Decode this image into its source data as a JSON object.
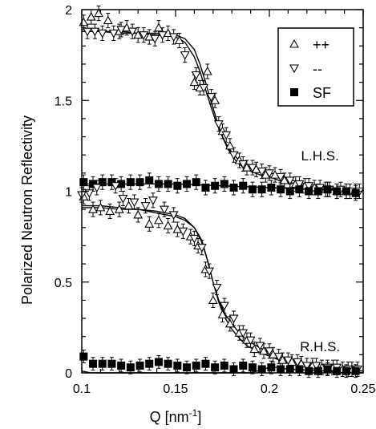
{
  "chart_data": {
    "type": "scatter",
    "title": "",
    "xlabel": "Q [nm",
    "xlabel_sup": "-1",
    "xlabel_suffix": "]",
    "ylabel": "Polarized Neutron Reflectivity",
    "xlim": [
      0.1,
      0.25
    ],
    "ylim": [
      0,
      2
    ],
    "x_ticks": [
      0.1,
      0.15,
      0.2,
      0.25
    ],
    "x_tick_labels": [
      "0.1",
      "0.15",
      "0.2",
      "0.25"
    ],
    "y_ticks": [
      0,
      0.5,
      1,
      1.5,
      2
    ],
    "y_tick_labels": [
      "0",
      "0.5",
      "1",
      "1.5",
      "2"
    ],
    "grid": false,
    "legend_position": "top-right",
    "legend": [
      {
        "key": "pp",
        "label": "++"
      },
      {
        "key": "mm",
        "label": "--"
      },
      {
        "key": "sf",
        "label": "SF"
      }
    ],
    "annotations": [
      {
        "text": "L.H.S.",
        "x": 0.227,
        "y": 1.17
      },
      {
        "text": "R.H.S.",
        "x": 0.227,
        "y": 0.12
      }
    ],
    "colors": {
      "markers": "#000000",
      "lines": "#000000"
    },
    "series": [
      {
        "key": "pp",
        "group": "L.H.S.",
        "marker": "triangle-up",
        "x": [
          0.101,
          0.105,
          0.109,
          0.114,
          0.12,
          0.124,
          0.13,
          0.136,
          0.141,
          0.146,
          0.152,
          0.16,
          0.163,
          0.167,
          0.171,
          0.175,
          0.179,
          0.184,
          0.188,
          0.193,
          0.198,
          0.203,
          0.208,
          0.214,
          0.219,
          0.224,
          0.23,
          0.236,
          0.241,
          0.246
        ],
        "y": [
          1.93,
          1.96,
          1.98,
          1.94,
          1.88,
          1.9,
          1.86,
          1.85,
          1.9,
          1.87,
          1.83,
          1.6,
          1.57,
          1.66,
          1.5,
          1.33,
          1.25,
          1.17,
          1.13,
          1.12,
          1.09,
          1.09,
          1.06,
          1.04,
          1.03,
          1.02,
          1.01,
          1.0,
          1.0,
          1.0
        ],
        "yerr": 0.04
      },
      {
        "key": "mm",
        "group": "L.H.S.",
        "marker": "triangle-down",
        "x": [
          0.103,
          0.107,
          0.111,
          0.117,
          0.121,
          0.127,
          0.133,
          0.139,
          0.143,
          0.149,
          0.155,
          0.161,
          0.165,
          0.169,
          0.173,
          0.177,
          0.181,
          0.186,
          0.191,
          0.196,
          0.2,
          0.206,
          0.211,
          0.216,
          0.221,
          0.227,
          0.232,
          0.238,
          0.243,
          0.248
        ],
        "y": [
          1.88,
          1.88,
          1.87,
          1.87,
          1.89,
          1.88,
          1.86,
          1.84,
          1.86,
          1.85,
          1.75,
          1.64,
          1.57,
          1.52,
          1.37,
          1.31,
          1.2,
          1.15,
          1.13,
          1.11,
          1.1,
          1.08,
          1.06,
          1.04,
          1.03,
          1.02,
          1.01,
          1.01,
          1.0,
          1.0
        ],
        "yerr": 0.04
      },
      {
        "key": "sf",
        "group": "L.H.S.",
        "marker": "square",
        "x": [
          0.101,
          0.106,
          0.111,
          0.116,
          0.121,
          0.126,
          0.131,
          0.136,
          0.141,
          0.146,
          0.151,
          0.156,
          0.161,
          0.166,
          0.171,
          0.176,
          0.181,
          0.186,
          0.191,
          0.196,
          0.201,
          0.206,
          0.211,
          0.216,
          0.221,
          0.226,
          0.231,
          0.236,
          0.241,
          0.246
        ],
        "y": [
          1.05,
          1.04,
          1.05,
          1.05,
          1.04,
          1.05,
          1.05,
          1.06,
          1.04,
          1.04,
          1.03,
          1.04,
          1.05,
          1.02,
          1.03,
          1.04,
          1.02,
          1.03,
          1.01,
          1.01,
          1.02,
          1.01,
          1.0,
          1.01,
          1.0,
          1.0,
          1.01,
          1.0,
          1.0,
          0.99
        ],
        "yerr": 0.04
      },
      {
        "key": "pp",
        "group": "R.H.S.",
        "marker": "triangle-up",
        "x": [
          0.101,
          0.106,
          0.11,
          0.115,
          0.12,
          0.125,
          0.13,
          0.136,
          0.141,
          0.146,
          0.151,
          0.158,
          0.162,
          0.166,
          0.17,
          0.175,
          0.179,
          0.184,
          0.188,
          0.192,
          0.197,
          0.202,
          0.207,
          0.212,
          0.217,
          0.223,
          0.228,
          0.234,
          0.239,
          0.244
        ],
        "y": [
          0.97,
          0.9,
          0.91,
          0.89,
          0.9,
          0.92,
          0.87,
          0.82,
          0.84,
          0.81,
          0.79,
          0.75,
          0.7,
          0.57,
          0.4,
          0.32,
          0.27,
          0.22,
          0.18,
          0.13,
          0.12,
          0.1,
          0.07,
          0.06,
          0.05,
          0.04,
          0.03,
          0.03,
          0.02,
          0.02
        ],
        "yerr": 0.04
      },
      {
        "key": "mm",
        "group": "R.H.S.",
        "marker": "triangle-down",
        "x": [
          0.1,
          0.104,
          0.108,
          0.118,
          0.122,
          0.128,
          0.134,
          0.138,
          0.144,
          0.149,
          0.154,
          0.16,
          0.164,
          0.168,
          0.172,
          0.176,
          0.181,
          0.186,
          0.19,
          0.195,
          0.2,
          0.205,
          0.21,
          0.215,
          0.22,
          0.225,
          0.231,
          0.236,
          0.242,
          0.247
        ],
        "y": [
          0.98,
          0.99,
          1.02,
          1.03,
          0.96,
          0.94,
          0.92,
          0.95,
          0.9,
          0.87,
          0.78,
          0.74,
          0.69,
          0.56,
          0.47,
          0.37,
          0.3,
          0.22,
          0.18,
          0.15,
          0.12,
          0.09,
          0.07,
          0.06,
          0.04,
          0.04,
          0.03,
          0.03,
          0.02,
          0.02
        ],
        "yerr": 0.04
      },
      {
        "key": "sf",
        "group": "R.H.S.",
        "marker": "square",
        "x": [
          0.101,
          0.106,
          0.111,
          0.116,
          0.121,
          0.126,
          0.131,
          0.136,
          0.141,
          0.146,
          0.151,
          0.156,
          0.161,
          0.166,
          0.171,
          0.176,
          0.181,
          0.186,
          0.191,
          0.196,
          0.201,
          0.206,
          0.211,
          0.216,
          0.221,
          0.226,
          0.231,
          0.236,
          0.241,
          0.246
        ],
        "y": [
          0.09,
          0.05,
          0.05,
          0.05,
          0.04,
          0.03,
          0.04,
          0.05,
          0.06,
          0.05,
          0.04,
          0.03,
          0.04,
          0.05,
          0.03,
          0.04,
          0.02,
          0.04,
          0.03,
          0.02,
          0.03,
          0.02,
          0.02,
          0.02,
          0.01,
          0.01,
          0.02,
          0.01,
          0.01,
          0.01
        ],
        "yerr": 0.035
      }
    ],
    "fit_lines": [
      {
        "group": "L.H.S.",
        "key": "pp",
        "x": [
          0.1,
          0.11,
          0.12,
          0.13,
          0.14,
          0.15,
          0.155,
          0.16,
          0.163,
          0.166,
          0.169,
          0.172,
          0.175,
          0.178,
          0.182,
          0.186,
          0.19,
          0.195,
          0.2,
          0.205,
          0.21,
          0.215,
          0.22,
          0.225,
          0.23,
          0.235,
          0.24,
          0.245,
          0.25
        ],
        "y": [
          1.88,
          1.88,
          1.87,
          1.87,
          1.86,
          1.85,
          1.82,
          1.74,
          1.66,
          1.56,
          1.46,
          1.37,
          1.3,
          1.24,
          1.19,
          1.15,
          1.13,
          1.11,
          1.1,
          1.09,
          1.07,
          1.05,
          1.04,
          1.03,
          1.02,
          1.01,
          1.01,
          1.0,
          1.0
        ]
      },
      {
        "group": "L.H.S.",
        "key": "mm",
        "x": [
          0.1,
          0.11,
          0.12,
          0.13,
          0.14,
          0.15,
          0.155,
          0.16,
          0.163,
          0.166,
          0.169,
          0.172,
          0.175,
          0.178,
          0.182,
          0.186,
          0.19,
          0.195,
          0.2,
          0.205,
          0.21,
          0.215,
          0.22,
          0.225,
          0.23,
          0.235,
          0.24,
          0.245,
          0.25
        ],
        "y": [
          1.88,
          1.88,
          1.88,
          1.87,
          1.87,
          1.86,
          1.84,
          1.78,
          1.7,
          1.6,
          1.49,
          1.39,
          1.3,
          1.23,
          1.17,
          1.13,
          1.11,
          1.09,
          1.08,
          1.06,
          1.05,
          1.04,
          1.03,
          1.02,
          1.01,
          1.01,
          1.0,
          1.0,
          1.0
        ]
      },
      {
        "group": "L.H.S.",
        "key": "sf",
        "x": [
          0.1,
          0.15,
          0.2,
          0.25
        ],
        "y": [
          1.04,
          1.04,
          1.02,
          1.0
        ]
      },
      {
        "group": "R.H.S.",
        "key": "pp",
        "x": [
          0.1,
          0.11,
          0.12,
          0.13,
          0.14,
          0.15,
          0.155,
          0.16,
          0.164,
          0.167,
          0.17,
          0.173,
          0.176,
          0.18,
          0.184,
          0.188,
          0.193,
          0.198,
          0.203,
          0.208,
          0.213,
          0.218,
          0.223,
          0.228,
          0.235,
          0.242,
          0.25
        ],
        "y": [
          0.91,
          0.91,
          0.9,
          0.9,
          0.88,
          0.86,
          0.84,
          0.8,
          0.72,
          0.62,
          0.5,
          0.4,
          0.33,
          0.27,
          0.22,
          0.18,
          0.15,
          0.12,
          0.1,
          0.08,
          0.06,
          0.05,
          0.04,
          0.03,
          0.02,
          0.02,
          0.01
        ]
      },
      {
        "group": "R.H.S.",
        "key": "mm",
        "x": [
          0.1,
          0.11,
          0.12,
          0.13,
          0.14,
          0.15,
          0.155,
          0.16,
          0.164,
          0.167,
          0.17,
          0.173,
          0.176,
          0.18,
          0.184,
          0.188,
          0.193,
          0.198,
          0.203,
          0.208,
          0.213,
          0.218,
          0.223,
          0.228,
          0.235,
          0.242,
          0.25
        ],
        "y": [
          0.92,
          0.92,
          0.91,
          0.9,
          0.89,
          0.87,
          0.85,
          0.8,
          0.73,
          0.62,
          0.5,
          0.39,
          0.31,
          0.24,
          0.19,
          0.15,
          0.12,
          0.1,
          0.08,
          0.06,
          0.05,
          0.04,
          0.03,
          0.03,
          0.02,
          0.01,
          0.01
        ]
      },
      {
        "group": "R.H.S.",
        "key": "sf",
        "x": [
          0.1,
          0.105,
          0.11,
          0.15,
          0.19,
          0.2,
          0.205,
          0.21,
          0.25
        ],
        "y": [
          0.01,
          0.0,
          0.0,
          0.0,
          0.0,
          0.03,
          0.03,
          0.02,
          0.0
        ]
      }
    ]
  }
}
